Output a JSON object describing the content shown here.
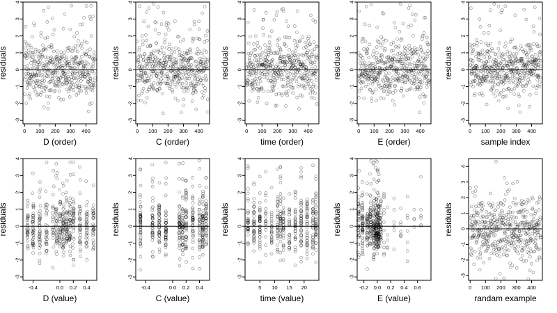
{
  "figure": {
    "background": "#ffffff",
    "point_color": "#000000"
  },
  "chart_data": [
    {
      "type": "scatter",
      "xlabel": "D (order)",
      "ylabel": "residuals",
      "xlim": [
        -10,
        470
      ],
      "ylim": [
        -3.2,
        4
      ],
      "xticks": [
        0,
        100,
        200,
        300,
        400
      ],
      "xtick_labels": [
        "0",
        "100",
        "200",
        "300",
        "400"
      ],
      "yticks": [
        -3,
        -2,
        -1,
        0,
        1,
        2,
        3,
        4
      ],
      "ytick_labels": [
        "-3",
        "-2",
        "-1",
        "0",
        "1",
        "2",
        "3",
        "4"
      ],
      "zero_line": true,
      "x_domain": "order",
      "points": []
    },
    {
      "type": "scatter",
      "xlabel": "C (order)",
      "ylabel": "residuals",
      "xlim": [
        -10,
        470
      ],
      "ylim": [
        -3.2,
        4
      ],
      "xticks": [
        0,
        100,
        200,
        300,
        400
      ],
      "xtick_labels": [
        "0",
        "100",
        "200",
        "300",
        "400"
      ],
      "yticks": [
        -3,
        -2,
        -1,
        0,
        1,
        2,
        3,
        4
      ],
      "ytick_labels": [
        "-3",
        "-2",
        "-1",
        "0",
        "1",
        "2",
        "3",
        "4"
      ],
      "zero_line": true,
      "x_domain": "order",
      "points": []
    },
    {
      "type": "scatter",
      "xlabel": "time (order)",
      "ylabel": "residuals",
      "xlim": [
        -10,
        470
      ],
      "ylim": [
        -3.2,
        4
      ],
      "xticks": [
        0,
        100,
        200,
        300,
        400
      ],
      "xtick_labels": [
        "0",
        "100",
        "200",
        "300",
        "400"
      ],
      "yticks": [
        -3,
        -2,
        -1,
        0,
        1,
        2,
        3,
        4
      ],
      "ytick_labels": [
        "-3",
        "-2",
        "-1",
        "0",
        "1",
        "2",
        "3",
        "4"
      ],
      "zero_line": true,
      "x_domain": "order",
      "points": []
    },
    {
      "type": "scatter",
      "xlabel": "E (order)",
      "ylabel": "residuals",
      "xlim": [
        -10,
        470
      ],
      "ylim": [
        -3.2,
        4
      ],
      "xticks": [
        0,
        100,
        200,
        300,
        400
      ],
      "xtick_labels": [
        "0",
        "100",
        "200",
        "300",
        "400"
      ],
      "yticks": [
        -3,
        -2,
        -1,
        0,
        1,
        2,
        3,
        4
      ],
      "ytick_labels": [
        "-3",
        "-2",
        "-1",
        "0",
        "1",
        "2",
        "3",
        "4"
      ],
      "zero_line": true,
      "x_domain": "order",
      "points": []
    },
    {
      "type": "scatter",
      "xlabel": "sample index",
      "ylabel": "residuals",
      "xlim": [
        -10,
        470
      ],
      "ylim": [
        -3.2,
        4
      ],
      "xticks": [
        0,
        100,
        200,
        300,
        400
      ],
      "xtick_labels": [
        "0",
        "100",
        "200",
        "300",
        "400"
      ],
      "yticks": [
        -3,
        -2,
        -1,
        0,
        1,
        2,
        3,
        4
      ],
      "ytick_labels": [
        "-3",
        "-2",
        "-1",
        "0",
        "1",
        "2",
        "3",
        "4"
      ],
      "zero_line": true,
      "x_domain": "order",
      "points": []
    },
    {
      "type": "scatter",
      "xlabel": "D (value)",
      "ylabel": "residuals",
      "xlim": [
        -0.55,
        0.55
      ],
      "ylim": [
        -3.2,
        4
      ],
      "xticks": [
        -0.4,
        0,
        0.2,
        0.4
      ],
      "xtick_labels": [
        "-0.4",
        "0.0",
        "0.2",
        "0.4"
      ],
      "yticks": [
        -3,
        -2,
        -1,
        0,
        1,
        2,
        3,
        4
      ],
      "ytick_labels": [
        "-3",
        "-2",
        "-1",
        "0",
        "1",
        "2",
        "3",
        "4"
      ],
      "zero_line": true,
      "x_domain": "D",
      "points": []
    },
    {
      "type": "scatter",
      "xlabel": "C (value)",
      "ylabel": "residuals",
      "xlim": [
        -0.55,
        0.55
      ],
      "ylim": [
        -3.2,
        4
      ],
      "xticks": [
        -0.4,
        0,
        0.2,
        0.4
      ],
      "xtick_labels": [
        "-0.4",
        "0.0",
        "0.2",
        "0.4"
      ],
      "yticks": [
        -3,
        -2,
        -1,
        0,
        1,
        2,
        3,
        4
      ],
      "ytick_labels": [
        "-3",
        "-2",
        "-1",
        "0",
        "1",
        "2",
        "3",
        "4"
      ],
      "zero_line": true,
      "x_domain": "C",
      "points": []
    },
    {
      "type": "scatter",
      "xlabel": "time (value)",
      "ylabel": "residuals",
      "xlim": [
        0,
        25
      ],
      "ylim": [
        -3.2,
        4
      ],
      "xticks": [
        5,
        10,
        15,
        20
      ],
      "xtick_labels": [
        "5",
        "10",
        "15",
        "20"
      ],
      "yticks": [
        -3,
        -2,
        -1,
        0,
        1,
        2,
        3,
        4
      ],
      "ytick_labels": [
        "-3",
        "-2",
        "-1",
        "0",
        "1",
        "2",
        "3",
        "4"
      ],
      "zero_line": true,
      "x_domain": "time",
      "points": []
    },
    {
      "type": "scatter",
      "xlabel": "E (value)",
      "ylabel": "residuals",
      "xlim": [
        -0.3,
        0.8
      ],
      "ylim": [
        -3.2,
        4
      ],
      "xticks": [
        -0.2,
        0,
        0.2,
        0.4,
        0.6
      ],
      "xtick_labels": [
        "-0.2",
        "0.0",
        "0.2",
        "0.4",
        "0.6"
      ],
      "yticks": [
        -3,
        -2,
        -1,
        0,
        1,
        2,
        3,
        4
      ],
      "ytick_labels": [
        "-3",
        "-2",
        "-1",
        "0",
        "1",
        "2",
        "3",
        "4"
      ],
      "zero_line": true,
      "x_domain": "E",
      "points": []
    },
    {
      "type": "scatter",
      "xlabel": "randam example",
      "ylabel": "residuals",
      "xlim": [
        -10,
        470
      ],
      "ylim": [
        -3.3,
        4.5
      ],
      "xticks": [
        0,
        100,
        200,
        300,
        400
      ],
      "xtick_labels": [
        "0",
        "100",
        "200",
        "300",
        "400"
      ],
      "yticks": [
        -3,
        -2,
        -1,
        0,
        1,
        2,
        3,
        4
      ],
      "ytick_labels": [
        "-3",
        "-2",
        "-1",
        "0",
        "1",
        "2",
        "3",
        "4"
      ],
      "zero_line": true,
      "x_domain": "order",
      "points": []
    }
  ]
}
